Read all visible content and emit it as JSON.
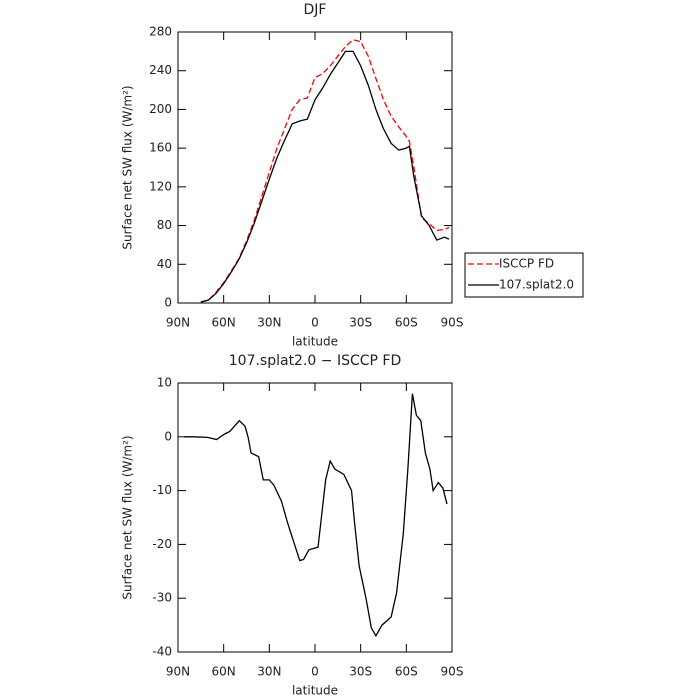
{
  "chart_data": [
    {
      "type": "line",
      "title": "DJF",
      "ylabel": "Surface net SW flux (W/m²)",
      "xlabel": "latitude",
      "x": [
        75,
        70,
        65,
        60,
        55,
        50,
        45,
        40,
        35,
        30,
        25,
        20,
        15,
        10,
        5,
        0,
        -5,
        -10,
        -15,
        -20,
        -25,
        -30,
        -35,
        -40,
        -45,
        -50,
        -55,
        -60,
        -62,
        -65,
        -70,
        -75,
        -80,
        -85,
        -88
      ],
      "series": [
        {
          "name": "ISCCP FD",
          "color": "#ff0000",
          "linestyle": "dashed",
          "values": [
            1,
            3,
            11,
            21,
            33,
            46,
            64,
            85,
            110,
            135,
            160,
            180,
            200,
            210,
            212,
            233,
            237,
            245,
            255,
            265,
            272,
            270,
            255,
            232,
            210,
            193,
            182,
            172,
            167,
            140,
            88,
            82,
            75,
            76,
            78
          ]
        },
        {
          "name": "107.splat2.0",
          "color": "#000000",
          "linestyle": "solid",
          "values": [
            1,
            3,
            10,
            20,
            32,
            45,
            62,
            82,
            105,
            128,
            150,
            168,
            185,
            188,
            190,
            210,
            222,
            236,
            248,
            260,
            260,
            245,
            225,
            200,
            180,
            165,
            158,
            160,
            162,
            130,
            90,
            80,
            65,
            68,
            66
          ]
        }
      ],
      "xlim": [
        90,
        -90
      ],
      "xticks": [
        {
          "value": 90,
          "label": "90N"
        },
        {
          "value": 60,
          "label": "60N"
        },
        {
          "value": 30,
          "label": "30N"
        },
        0,
        {
          "value": -30,
          "label": "30S"
        },
        {
          "value": -60,
          "label": "60S"
        },
        {
          "value": -90,
          "label": "90S"
        }
      ],
      "ylim": [
        0,
        280
      ],
      "yticks": [
        0,
        40,
        80,
        120,
        160,
        200,
        240,
        280
      ],
      "legend": "outside right",
      "grid": false
    },
    {
      "type": "line",
      "title": "107.splat2.0 − ISCCP FD",
      "ylabel": "Surface net SW flux (W/m²)",
      "xlabel": "latitude",
      "x": [
        86,
        80,
        70.5,
        64.7,
        59.5,
        56,
        49.7,
        46,
        44,
        42,
        37,
        34,
        30,
        27,
        22,
        18,
        14.6,
        10,
        7.5,
        4,
        -2,
        -7,
        -10,
        -13,
        -19,
        -24,
        -26,
        -29,
        -33.5,
        -37,
        -40,
        -44,
        -50,
        -53.6,
        -58,
        -61,
        -64,
        -66.6,
        -69.5,
        -72.5,
        -75.5,
        -77.6,
        -81,
        -84,
        -86.7
      ],
      "series": [
        {
          "color": "#000000",
          "linestyle": "solid",
          "values": [
            0,
            0,
            -0.1,
            -0.5,
            0.5,
            1,
            3,
            2,
            0,
            -3,
            -3.7,
            -8,
            -8,
            -9,
            -12,
            -16,
            -19,
            -23,
            -22.8,
            -21,
            -20.5,
            -8,
            -4.5,
            -6,
            -7,
            -10,
            -16,
            -24,
            -30,
            -35.5,
            -37,
            -35,
            -33.5,
            -29,
            -18,
            -6,
            8,
            4,
            3,
            -3,
            -6,
            -10,
            -8.5,
            -9.5,
            -12.5
          ]
        }
      ],
      "xlim": [
        90,
        -90
      ],
      "xticks": [
        {
          "value": 90,
          "label": "90N"
        },
        {
          "value": 60,
          "label": "60N"
        },
        {
          "value": 30,
          "label": "30N"
        },
        0,
        {
          "value": -30,
          "label": "30S"
        },
        {
          "value": -60,
          "label": "60S"
        },
        {
          "value": -90,
          "label": "90S"
        }
      ],
      "ylim": [
        -40,
        10
      ],
      "yticks": [
        -40,
        -30,
        -20,
        -10,
        0,
        10
      ],
      "grid": false
    }
  ]
}
